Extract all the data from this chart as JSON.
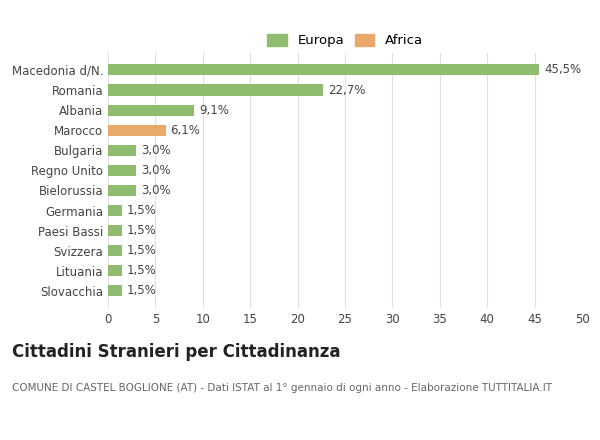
{
  "categories": [
    "Slovacchia",
    "Lituania",
    "Svizzera",
    "Paesi Bassi",
    "Germania",
    "Bielorussia",
    "Regno Unito",
    "Bulgaria",
    "Marocco",
    "Albania",
    "Romania",
    "Macedonia d/N."
  ],
  "values": [
    1.5,
    1.5,
    1.5,
    1.5,
    1.5,
    3.0,
    3.0,
    3.0,
    6.1,
    9.1,
    22.7,
    45.5
  ],
  "labels": [
    "1,5%",
    "1,5%",
    "1,5%",
    "1,5%",
    "1,5%",
    "3,0%",
    "3,0%",
    "3,0%",
    "6,1%",
    "9,1%",
    "22,7%",
    "45,5%"
  ],
  "colors": [
    "#8fbc6e",
    "#8fbc6e",
    "#8fbc6e",
    "#8fbc6e",
    "#8fbc6e",
    "#8fbc6e",
    "#8fbc6e",
    "#8fbc6e",
    "#e8a96b",
    "#8fbc6e",
    "#8fbc6e",
    "#8fbc6e"
  ],
  "europa_color": "#8fbc6e",
  "africa_color": "#e8a96b",
  "xlim": [
    0,
    50
  ],
  "xticks": [
    0,
    5,
    10,
    15,
    20,
    25,
    30,
    35,
    40,
    45,
    50
  ],
  "title": "Cittadini Stranieri per Cittadinanza",
  "subtitle": "COMUNE DI CASTEL BOGLIONE (AT) - Dati ISTAT al 1° gennaio di ogni anno - Elaborazione TUTTITALIA.IT",
  "background_color": "#ffffff",
  "grid_color": "#e0e0e0",
  "bar_height": 0.55,
  "label_fontsize": 8.5,
  "tick_fontsize": 8.5,
  "title_fontsize": 12,
  "subtitle_fontsize": 7.5,
  "legend_fontsize": 9.5
}
